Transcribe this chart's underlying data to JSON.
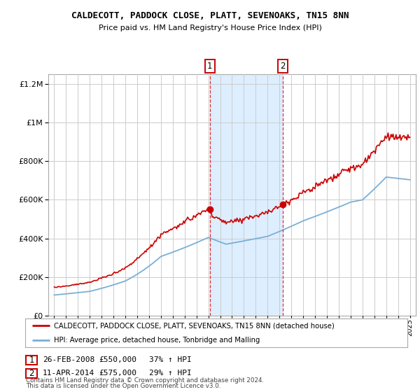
{
  "title": "CALDECOTT, PADDOCK CLOSE, PLATT, SEVENOAKS, TN15 8NN",
  "subtitle": "Price paid vs. HM Land Registry's House Price Index (HPI)",
  "legend_line1": "CALDECOTT, PADDOCK CLOSE, PLATT, SEVENOAKS, TN15 8NN (detached house)",
  "legend_line2": "HPI: Average price, detached house, Tonbridge and Malling",
  "footnote1": "Contains HM Land Registry data © Crown copyright and database right 2024.",
  "footnote2": "This data is licensed under the Open Government Licence v3.0.",
  "sale1_date_str": "26-FEB-2008",
  "sale1_price_str": "£550,000",
  "sale1_hpi_str": "37% ↑ HPI",
  "sale2_date_str": "11-APR-2014",
  "sale2_price_str": "£575,000",
  "sale2_hpi_str": "29% ↑ HPI",
  "sale1_year": 2008.13,
  "sale2_year": 2014.27,
  "sale1_price": 550000,
  "sale2_price": 575000,
  "ylim_max": 1250000,
  "ylim_min": 0,
  "xlim_min": 1994.5,
  "xlim_max": 2025.5,
  "house_color": "#cc0000",
  "hpi_color": "#7aafd4",
  "shaded_color": "#ddeeff",
  "vline_color": "#dd3333",
  "grid_color": "#cccccc",
  "bg_color": "#ffffff"
}
